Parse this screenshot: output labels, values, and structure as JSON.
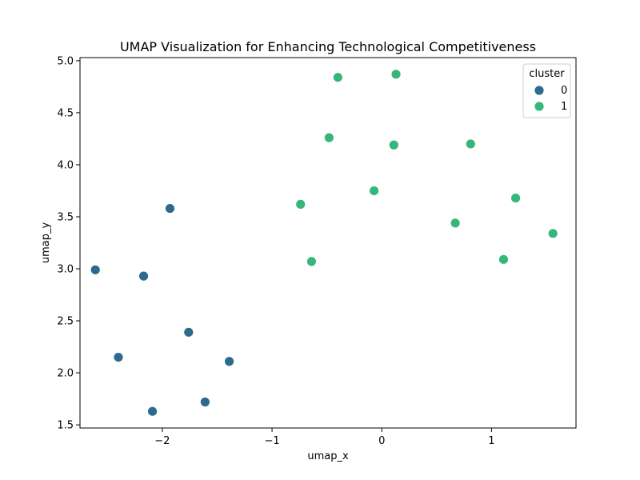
{
  "chart_data": {
    "type": "scatter",
    "title": "UMAP Visualization for Enhancing Technological Competitiveness",
    "xlabel": "umap_x",
    "ylabel": "umap_y",
    "xlim": [
      -2.75,
      1.77
    ],
    "ylim": [
      1.47,
      5.03
    ],
    "xticks": [
      -2,
      -1,
      0,
      1
    ],
    "xtick_labels": [
      "−2",
      "−1",
      "0",
      "1"
    ],
    "yticks": [
      1.5,
      2.0,
      2.5,
      3.0,
      3.5,
      4.0,
      4.5,
      5.0
    ],
    "ytick_labels": [
      "1.5",
      "2.0",
      "2.5",
      "3.0",
      "3.5",
      "4.0",
      "4.5",
      "5.0"
    ],
    "grid": false,
    "legend": {
      "title": "cluster",
      "placement": "top-right"
    },
    "series": [
      {
        "name": "0",
        "color": "#2e6a8e",
        "points": [
          {
            "x": -1.93,
            "y": 3.58
          },
          {
            "x": -2.61,
            "y": 2.99
          },
          {
            "x": -2.17,
            "y": 2.93
          },
          {
            "x": -1.76,
            "y": 2.39
          },
          {
            "x": -2.4,
            "y": 2.15
          },
          {
            "x": -1.39,
            "y": 2.11
          },
          {
            "x": -1.61,
            "y": 1.72
          },
          {
            "x": -2.09,
            "y": 1.63
          }
        ]
      },
      {
        "name": "1",
        "color": "#35b779",
        "points": [
          {
            "x": -0.4,
            "y": 4.84
          },
          {
            "x": 0.13,
            "y": 4.87
          },
          {
            "x": -0.48,
            "y": 4.26
          },
          {
            "x": 0.11,
            "y": 4.19
          },
          {
            "x": 0.81,
            "y": 4.2
          },
          {
            "x": -0.07,
            "y": 3.75
          },
          {
            "x": -0.74,
            "y": 3.62
          },
          {
            "x": 1.22,
            "y": 3.68
          },
          {
            "x": 0.67,
            "y": 3.44
          },
          {
            "x": 1.56,
            "y": 3.34
          },
          {
            "x": -0.64,
            "y": 3.07
          },
          {
            "x": 1.11,
            "y": 3.09
          }
        ]
      }
    ]
  }
}
